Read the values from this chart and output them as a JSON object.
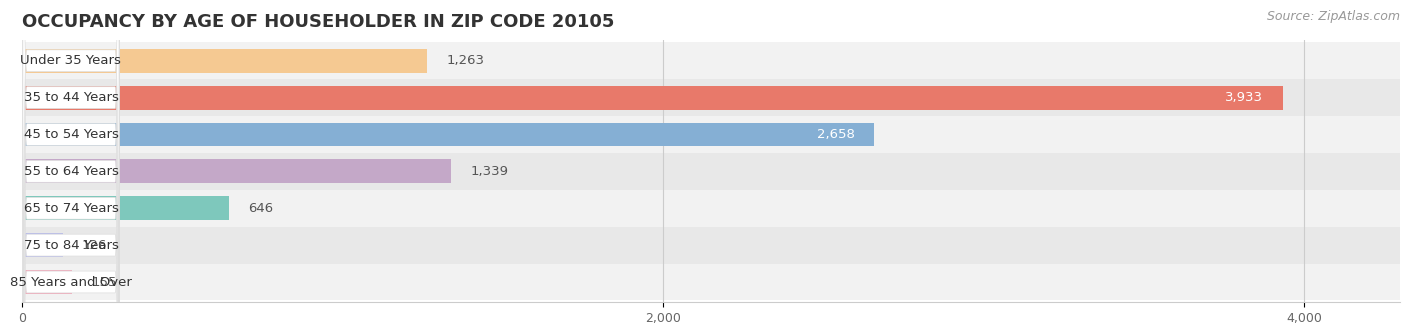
{
  "title": "OCCUPANCY BY AGE OF HOUSEHOLDER IN ZIP CODE 20105",
  "source": "Source: ZipAtlas.com",
  "categories": [
    "Under 35 Years",
    "35 to 44 Years",
    "45 to 54 Years",
    "55 to 64 Years",
    "65 to 74 Years",
    "75 to 84 Years",
    "85 Years and Over"
  ],
  "values": [
    1263,
    3933,
    2658,
    1339,
    646,
    126,
    155
  ],
  "bar_colors": [
    "#f5c992",
    "#e8796a",
    "#85afd4",
    "#c4a8c8",
    "#7ec8bc",
    "#b8bce8",
    "#f0a8b8"
  ],
  "value_label_colors": [
    "#555555",
    "#ffffff",
    "#ffffff",
    "#555555",
    "#555555",
    "#555555",
    "#555555"
  ],
  "xlim": [
    0,
    4300
  ],
  "xticks": [
    0,
    2000,
    4000
  ],
  "background_color": "#ffffff",
  "row_bg_colors": [
    "#f2f2f2",
    "#e8e8e8"
  ],
  "title_fontsize": 13,
  "source_fontsize": 9,
  "label_fontsize": 9.5,
  "value_fontsize": 9.5
}
